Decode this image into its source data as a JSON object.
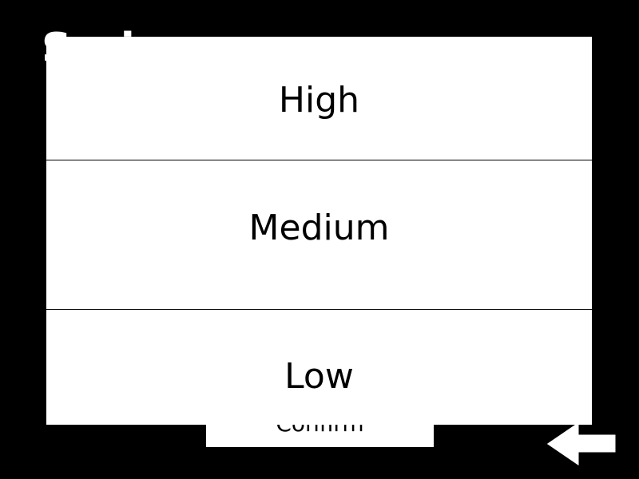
{
  "screen": {
    "title": "Sori"
  },
  "confirm_button": {
    "label": "Confirm"
  },
  "back_button": {
    "icon": "back-arrow-icon"
  },
  "dropdown": {
    "options": [
      {
        "label": "High"
      },
      {
        "label": "Medium"
      },
      {
        "label": "Low"
      }
    ]
  },
  "colors": {
    "background": "#000000",
    "panel": "#ffffff",
    "text_dark": "#000000",
    "text_light": "#ffffff"
  }
}
